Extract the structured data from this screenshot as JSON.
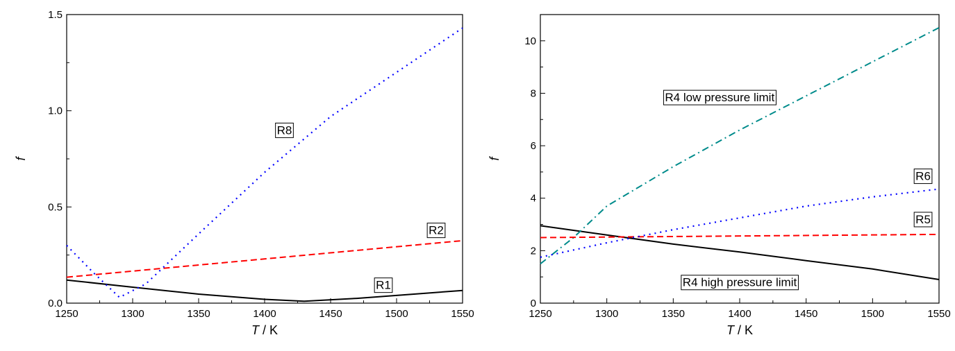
{
  "chart_data": [
    {
      "type": "line",
      "xlabel_var": "T",
      "xlabel_unit": " / K",
      "ylabel": "f",
      "xlim": [
        1250,
        1550
      ],
      "ylim": [
        0,
        1.5
      ],
      "xticks": [
        "1250",
        "1300",
        "1350",
        "1400",
        "1450",
        "1500",
        "1550"
      ],
      "yticks": [
        "0.0",
        "0.5",
        "1.0",
        "1.5"
      ],
      "ytick_values": [
        0,
        0.5,
        1.0,
        1.5
      ],
      "series": [
        {
          "name": "R1",
          "style": "solid",
          "color": "#000000",
          "x": [
            1250,
            1300,
            1350,
            1400,
            1430,
            1470,
            1500,
            1550
          ],
          "y": [
            0.12,
            0.083,
            0.047,
            0.02,
            0.01,
            0.025,
            0.04,
            0.066
          ]
        },
        {
          "name": "R2",
          "style": "dashed",
          "color": "#ff0000",
          "x": [
            1250,
            1550
          ],
          "y": [
            0.135,
            0.325
          ]
        },
        {
          "name": "R8",
          "style": "dotted",
          "color": "#0000ff",
          "x": [
            1250,
            1270,
            1290,
            1310,
            1350,
            1400,
            1450,
            1500,
            1550
          ],
          "y": [
            0.3,
            0.16,
            0.03,
            0.1,
            0.36,
            0.68,
            0.97,
            1.2,
            1.43
          ]
        }
      ],
      "annotations": [
        {
          "text": "R8",
          "x": 1415,
          "y": 0.9
        },
        {
          "text": "R2",
          "x": 1530,
          "y": 0.38
        },
        {
          "text": "R1",
          "x": 1490,
          "y": 0.095
        }
      ]
    },
    {
      "type": "line",
      "xlabel_var": "T",
      "xlabel_unit": " / K",
      "ylabel": "f",
      "xlim": [
        1250,
        1550
      ],
      "ylim": [
        0,
        11
      ],
      "xticks": [
        "1250",
        "1300",
        "1350",
        "1400",
        "1450",
        "1500",
        "1550"
      ],
      "yticks": [
        "0",
        "2",
        "4",
        "6",
        "8",
        "10"
      ],
      "ytick_values": [
        0,
        2,
        4,
        6,
        8,
        10
      ],
      "series": [
        {
          "name": "R4 high pressure limit",
          "style": "solid",
          "color": "#000000",
          "x": [
            1250,
            1300,
            1350,
            1400,
            1450,
            1500,
            1550
          ],
          "y": [
            2.95,
            2.6,
            2.25,
            1.95,
            1.62,
            1.3,
            0.9
          ]
        },
        {
          "name": "R4 low pressure limit",
          "style": "dashdot",
          "color": "#008b8b",
          "x": [
            1250,
            1275,
            1300,
            1350,
            1400,
            1450,
            1500,
            1550
          ],
          "y": [
            1.5,
            2.5,
            3.7,
            5.2,
            6.6,
            7.9,
            9.2,
            10.5
          ]
        },
        {
          "name": "R5",
          "style": "dashed",
          "color": "#ff0000",
          "x": [
            1250,
            1550
          ],
          "y": [
            2.5,
            2.62
          ]
        },
        {
          "name": "R6",
          "style": "dotted",
          "color": "#0000ff",
          "x": [
            1250,
            1300,
            1350,
            1400,
            1450,
            1500,
            1550
          ],
          "y": [
            1.75,
            2.3,
            2.8,
            3.25,
            3.7,
            4.05,
            4.35
          ]
        }
      ],
      "annotations": [
        {
          "text": "R4 low pressure limit",
          "x": 1385,
          "y": 7.85
        },
        {
          "text": "R6",
          "x": 1538,
          "y": 4.85
        },
        {
          "text": "R5",
          "x": 1538,
          "y": 3.2
        },
        {
          "text": "R4 high pressure limit",
          "x": 1400,
          "y": 0.8
        }
      ]
    }
  ]
}
